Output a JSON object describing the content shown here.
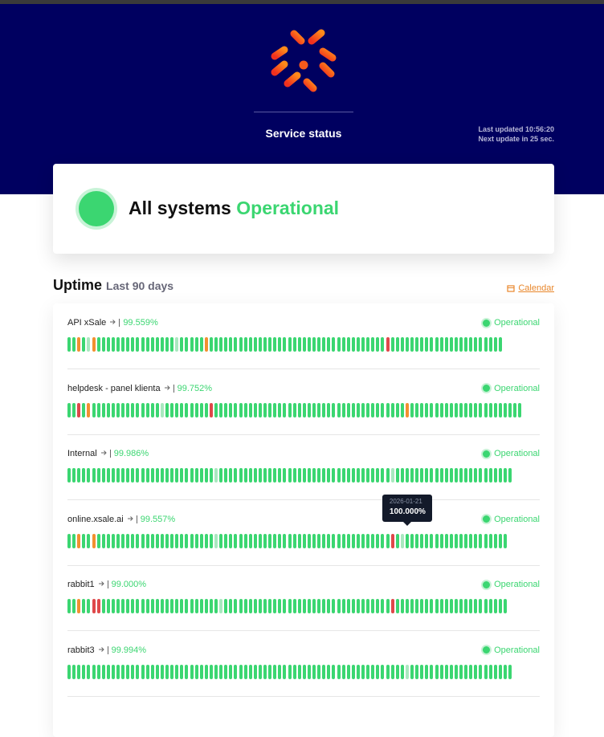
{
  "header": {
    "title": "Service status",
    "last_updated": "Last updated 10:56:20",
    "next_update": "Next update in 25 sec."
  },
  "summary": {
    "prefix": "All systems",
    "status": "Operational"
  },
  "uptime": {
    "title": "Uptime",
    "period": "Last 90 days",
    "calendar": "Calendar"
  },
  "monitors": [
    {
      "name": "API xSale",
      "uptime": "99.559%",
      "status": "Operational",
      "bars": "ggoglogggggggggggggggglgggggoggggggggggggggggggggggggggggggggggggrggggggggggggggggggggggg"
    },
    {
      "name": "helpdesk - panel klienta",
      "uptime": "99.752%",
      "status": "Operational",
      "bars": "ggrgogggggggggggggglgggggggggrgggggggggggggggggggggggggggggggggggggggoggggggggggggggggggggggg"
    },
    {
      "name": "Internal",
      "uptime": "99.986%",
      "status": "Operational",
      "bars": "gggggggggggggggggggggggggggggglggggggggggggggggggggggggggggggggggglgggggggggggggggggggggggg"
    },
    {
      "name": "online.xsale.ai",
      "uptime": "99.557%",
      "status": "Operational",
      "bars": "ggoggogggggggggggggggggggggggglgggggggggggggggggggggggggggggggggggrglggggggggggggggggggggg"
    },
    {
      "name": "rabbit1",
      "uptime": "99.000%",
      "status": "Operational",
      "bars": "ggoggrrgggggggggggggggggggggggglggggggggggggggggggggggggggggggggggrggggggggggggggggggggggg"
    },
    {
      "name": "rabbit3",
      "uptime": "99.994%",
      "status": "Operational",
      "bars": "ggggggggggggggggggggggggggggggggggggggggggggggggggggggggggggggggggggglggggggggggggggggggggg"
    }
  ],
  "tooltip": {
    "monitor": 3,
    "bar": 69,
    "date": "2026-01-21",
    "value": "100.000%"
  }
}
